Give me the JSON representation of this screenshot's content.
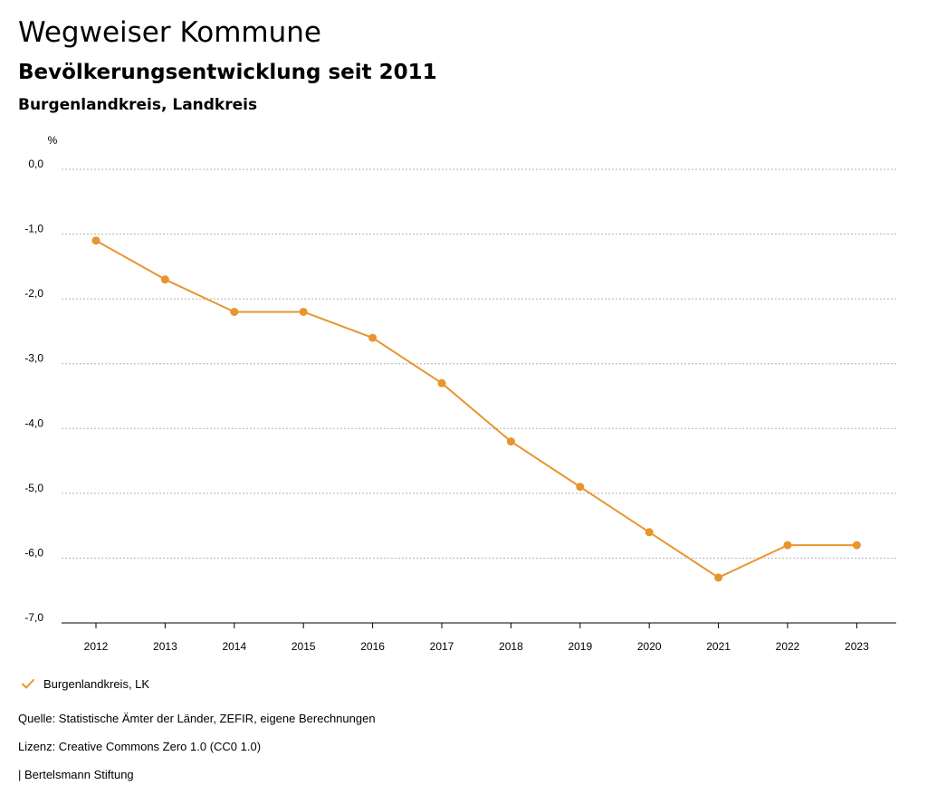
{
  "header": {
    "title": "Wegweiser Kommune",
    "subtitle": "Bevölkerungsentwicklung seit 2011",
    "region": "Burgenlandkreis, Landkreis"
  },
  "footer": {
    "source": "Quelle: Statistische Ämter der Länder, ZEFIR, eigene Berechnungen",
    "license": "Lizenz: Creative Commons Zero 1.0 (CC0 1.0)",
    "publisher": "| Bertelsmann Stiftung"
  },
  "colors": {
    "series": "#e8952e",
    "grid": "#b3b3b3",
    "axis": "#000000"
  },
  "chart_data": {
    "type": "line",
    "title": "Bevölkerungsentwicklung seit 2011",
    "ylabel": "%",
    "xlabel": "",
    "categories": [
      "2012",
      "2013",
      "2014",
      "2015",
      "2016",
      "2017",
      "2018",
      "2019",
      "2020",
      "2021",
      "2022",
      "2023"
    ],
    "series": [
      {
        "name": "Burgenlandkreis, LK",
        "values": [
          -1.1,
          -1.7,
          -2.2,
          -2.2,
          -2.6,
          -3.3,
          -4.2,
          -4.9,
          -5.6,
          -6.3,
          -5.8,
          -5.8
        ]
      }
    ],
    "ylim": [
      -7.0,
      0.0
    ],
    "yticks": [
      "0,0",
      "-1,0",
      "-2,0",
      "-3,0",
      "-4,0",
      "-5,0",
      "-6,0",
      "-7,0"
    ],
    "ytick_values": [
      0,
      -1,
      -2,
      -3,
      -4,
      -5,
      -6,
      -7
    ],
    "grid": true,
    "legend_position": "bottom-left"
  }
}
